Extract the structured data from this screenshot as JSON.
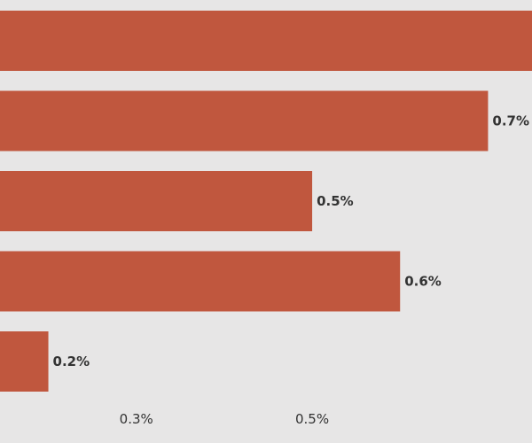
{
  "colors": {
    "background": "#e7e6e6",
    "bar": "#c0573e",
    "text": "#333333"
  },
  "chart_data": {
    "type": "bar",
    "orientation": "horizontal",
    "values": [
      0.75,
      0.7,
      0.5,
      0.6,
      0.2
    ],
    "value_labels": [
      "",
      "0.7%",
      "0.5%",
      "0.6%",
      "0.2%"
    ],
    "x_ticks": [
      {
        "value": 0.3,
        "label": "0.3%"
      },
      {
        "value": 0.5,
        "label": "0.5%"
      }
    ],
    "xlim": [
      0.145,
      0.75
    ],
    "grid": false,
    "legend": false
  }
}
